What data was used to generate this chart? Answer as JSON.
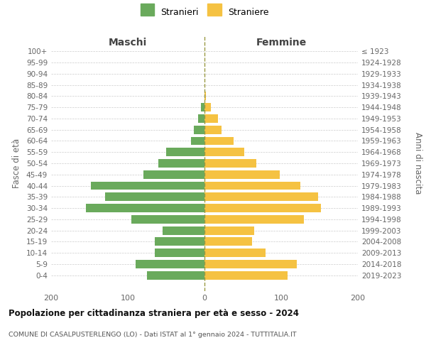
{
  "age_groups": [
    "100+",
    "95-99",
    "90-94",
    "85-89",
    "80-84",
    "75-79",
    "70-74",
    "65-69",
    "60-64",
    "55-59",
    "50-54",
    "45-49",
    "40-44",
    "35-39",
    "30-34",
    "25-29",
    "20-24",
    "15-19",
    "10-14",
    "5-9",
    "0-4"
  ],
  "birth_years": [
    "≤ 1923",
    "1924-1928",
    "1929-1933",
    "1934-1938",
    "1939-1943",
    "1944-1948",
    "1949-1953",
    "1954-1958",
    "1959-1963",
    "1964-1968",
    "1969-1973",
    "1974-1978",
    "1979-1983",
    "1984-1988",
    "1989-1993",
    "1994-1998",
    "1999-2003",
    "2004-2008",
    "2009-2013",
    "2014-2018",
    "2019-2023"
  ],
  "maschi": [
    0,
    0,
    0,
    0,
    0,
    5,
    8,
    14,
    18,
    50,
    60,
    80,
    148,
    130,
    155,
    95,
    55,
    65,
    65,
    90,
    75
  ],
  "femmine": [
    0,
    0,
    0,
    0,
    2,
    8,
    18,
    22,
    38,
    52,
    68,
    98,
    125,
    148,
    152,
    130,
    65,
    62,
    80,
    120,
    108
  ],
  "maschi_color": "#6aaa5c",
  "femmine_color": "#f5c242",
  "title": "Popolazione per cittadinanza straniera per età e sesso - 2024",
  "subtitle": "COMUNE DI CASALPUSTERLENGO (LO) - Dati ISTAT al 1° gennaio 2024 - TUTTITALIA.IT",
  "legend_maschi": "Stranieri",
  "legend_femmine": "Straniere",
  "label_maschi": "Maschi",
  "label_femmine": "Femmine",
  "ylabel_left": "Fasce di età",
  "ylabel_right": "Anni di nascita",
  "xlim": 200,
  "background_color": "#ffffff",
  "grid_color": "#cccccc",
  "tick_color": "#666666",
  "center_line_color": "#999944"
}
